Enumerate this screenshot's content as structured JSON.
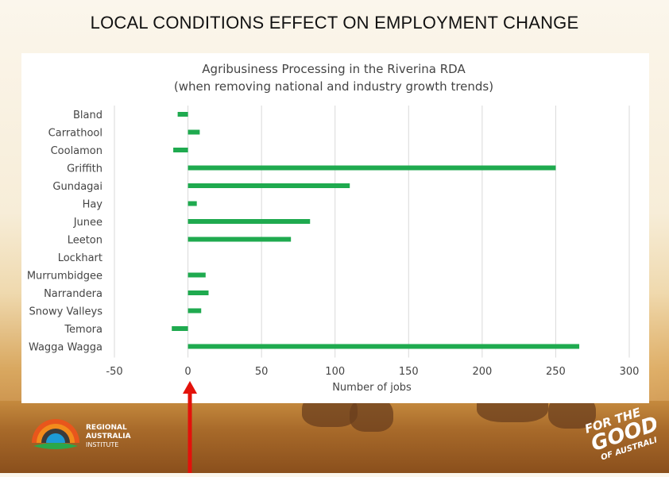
{
  "slide": {
    "title": "LOCAL CONDITIONS EFFECT ON EMPLOYMENT CHANGE"
  },
  "chart_data": {
    "type": "bar",
    "orientation": "horizontal",
    "title": "Agribusiness Processing in the Riverina RDA",
    "subtitle": "(when removing national and industry growth trends)",
    "xlabel": "Number of jobs",
    "ylabel": "",
    "categories": [
      "Bland",
      "Carrathool",
      "Coolamon",
      "Griffith",
      "Gundagai",
      "Hay",
      "Junee",
      "Leeton",
      "Lockhart",
      "Murrumbidgee",
      "Narrandera",
      "Snowy Valleys",
      "Temora",
      "Wagga Wagga"
    ],
    "values": [
      -7,
      8,
      -10,
      250,
      110,
      6,
      83,
      70,
      0,
      12,
      14,
      9,
      -11,
      266
    ],
    "xlim": [
      -50,
      300
    ],
    "xticks": [
      "-50",
      "0",
      "50",
      "100",
      "150",
      "200",
      "250",
      "300"
    ],
    "grid": true,
    "legend": false,
    "bar_color": "#1faa4f"
  },
  "annotation": {
    "arrow_color": "#e3120b"
  },
  "logos": {
    "left": {
      "line1": "REGIONAL",
      "line2": "AUSTRALIA",
      "line3": "INSTITUTE"
    },
    "right": {
      "line1": "FOR THE",
      "line2": "GOOD",
      "line3": "OF AUSTRALIA"
    }
  }
}
